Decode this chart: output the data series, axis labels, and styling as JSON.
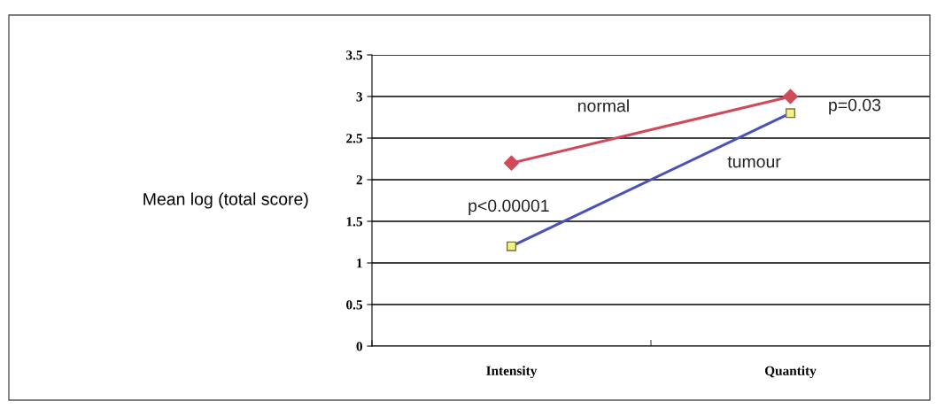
{
  "chart_data": {
    "type": "line",
    "ylabel": "Mean log (total score)",
    "categories": [
      "Intensity",
      "Quantity"
    ],
    "series": [
      {
        "name": "normal",
        "color": "#d04a5a",
        "values": [
          2.2,
          3.0
        ],
        "marker": "diamond"
      },
      {
        "name": "tumour",
        "color": "#4a52b8",
        "values": [
          1.2,
          2.8
        ],
        "marker": "square",
        "colors": [
          "#f4f08a",
          "#f4f08a"
        ]
      }
    ],
    "annotations": [
      "p<0.00001",
      "p=0.03"
    ],
    "ylim": [
      0,
      3.5
    ],
    "yticks": [
      0,
      0.5,
      1,
      1.5,
      2,
      2.5,
      3,
      3.5
    ],
    "grid": "y",
    "legend": false
  }
}
